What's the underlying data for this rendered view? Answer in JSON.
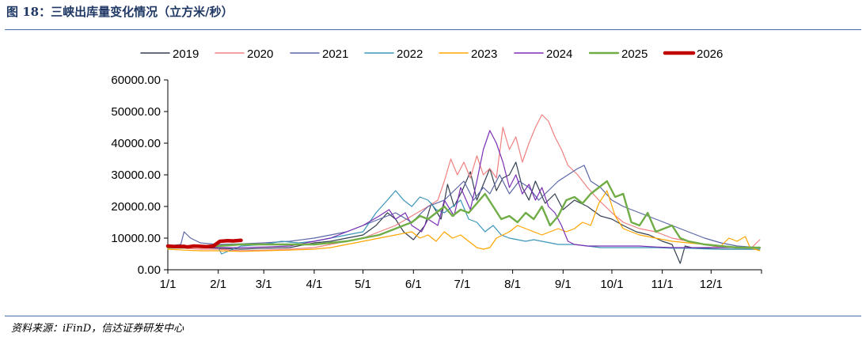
{
  "header": {
    "title": "图 18：三峡出库量变化情况（立方米/秒）"
  },
  "footer": {
    "source": "资料来源：iFinD，信达证券研发中心"
  },
  "chart_data": {
    "type": "line",
    "title": "三峡出库量变化情况（立方米/秒）",
    "xlabel": "",
    "ylabel": "",
    "ylim": [
      0,
      60000
    ],
    "yticks": [
      "0.00",
      "10000.00",
      "20000.00",
      "30000.00",
      "40000.00",
      "50000.00",
      "60000.00"
    ],
    "xlim": [
      0,
      365
    ],
    "xtick_labels": [
      "1/1",
      "2/1",
      "3/1",
      "4/1",
      "5/1",
      "6/1",
      "7/1",
      "8/1",
      "9/1",
      "10/1",
      "11/1",
      "12/1"
    ],
    "xtick_days": [
      0,
      31,
      59,
      90,
      120,
      151,
      181,
      212,
      243,
      273,
      304,
      334
    ],
    "legend_position": "top-center",
    "series": [
      {
        "name": "2019",
        "color": "#333f50",
        "width": 1.2,
        "days": [
          0,
          10,
          20,
          31,
          45,
          59,
          75,
          90,
          100,
          110,
          120,
          128,
          135,
          140,
          145,
          151,
          158,
          162,
          168,
          172,
          176,
          181,
          186,
          190,
          194,
          198,
          202,
          206,
          210,
          214,
          218,
          222,
          226,
          232,
          238,
          243,
          250,
          258,
          266,
          273,
          280,
          288,
          296,
          304,
          310,
          315,
          318,
          322,
          330,
          340,
          350,
          364
        ],
        "values": [
          7500,
          7200,
          7000,
          6800,
          6500,
          6800,
          7000,
          8500,
          9000,
          10000,
          11000,
          14000,
          18000,
          16000,
          12000,
          9500,
          14000,
          21000,
          16000,
          27000,
          20000,
          25000,
          31000,
          22000,
          27000,
          32000,
          25000,
          29000,
          30000,
          34000,
          26000,
          22000,
          28000,
          21000,
          24000,
          19000,
          22000,
          20000,
          17000,
          16000,
          14000,
          12000,
          11000,
          9000,
          8000,
          2000,
          7500,
          7000,
          6800,
          6500,
          6500,
          6500
        ]
      },
      {
        "name": "2020",
        "color": "#f08080",
        "width": 1.2,
        "days": [
          0,
          10,
          20,
          31,
          45,
          59,
          75,
          90,
          100,
          110,
          120,
          130,
          140,
          150,
          160,
          166,
          170,
          174,
          178,
          182,
          186,
          190,
          194,
          198,
          202,
          206,
          210,
          214,
          218,
          222,
          226,
          230,
          234,
          238,
          242,
          246,
          252,
          258,
          265,
          273,
          280,
          290,
          300,
          310,
          320,
          330,
          340,
          350,
          358,
          364
        ],
        "values": [
          7000,
          6800,
          6500,
          6500,
          6000,
          6200,
          6500,
          7000,
          8000,
          9000,
          10000,
          12000,
          14000,
          17000,
          20000,
          22000,
          28000,
          35000,
          30000,
          34000,
          29000,
          36000,
          30000,
          32000,
          29000,
          45000,
          38000,
          42000,
          34000,
          40000,
          45000,
          49000,
          47000,
          42000,
          38000,
          33000,
          30000,
          26000,
          22000,
          18000,
          15000,
          13000,
          12000,
          10000,
          9000,
          8000,
          7000,
          7200,
          6500,
          9500
        ]
      },
      {
        "name": "2021",
        "color": "#5a66a6",
        "width": 1.2,
        "days": [
          0,
          8,
          10,
          14,
          20,
          31,
          45,
          59,
          75,
          90,
          100,
          110,
          120,
          130,
          140,
          150,
          160,
          170,
          176,
          182,
          188,
          194,
          198,
          204,
          210,
          216,
          222,
          228,
          234,
          240,
          246,
          252,
          256,
          260,
          266,
          273,
          280,
          290,
          300,
          310,
          320,
          330,
          340,
          350,
          364
        ],
        "values": [
          7500,
          8000,
          12000,
          10000,
          8500,
          8000,
          8200,
          8500,
          9000,
          10000,
          11000,
          12000,
          14000,
          16000,
          18000,
          15000,
          20000,
          22000,
          25000,
          28000,
          22000,
          26000,
          24000,
          30000,
          24000,
          28000,
          26000,
          22000,
          25000,
          28000,
          30000,
          32000,
          33000,
          28000,
          26000,
          22000,
          20000,
          18000,
          16000,
          14000,
          12000,
          10000,
          8500,
          7500,
          7000
        ]
      },
      {
        "name": "2022",
        "color": "#3b95b8",
        "width": 1.2,
        "days": [
          0,
          10,
          20,
          31,
          33,
          45,
          59,
          70,
          80,
          90,
          100,
          110,
          120,
          128,
          135,
          140,
          145,
          150,
          155,
          160,
          165,
          170,
          175,
          180,
          185,
          190,
          195,
          200,
          205,
          210,
          215,
          220,
          225,
          230,
          235,
          240,
          245,
          250,
          258,
          266,
          273,
          280,
          290,
          300,
          310,
          320,
          330,
          340,
          350,
          364
        ],
        "values": [
          7000,
          7000,
          7200,
          7000,
          5000,
          7500,
          8000,
          9000,
          8500,
          9000,
          10000,
          11000,
          12000,
          18000,
          22000,
          25000,
          22000,
          20000,
          23000,
          22000,
          19000,
          18000,
          20000,
          22000,
          16000,
          15000,
          12000,
          14000,
          11000,
          10000,
          9500,
          9000,
          9500,
          9000,
          8500,
          8000,
          8000,
          8000,
          7500,
          7000,
          7000,
          7000,
          7000,
          7000,
          6800,
          6800,
          6600,
          6500,
          6500,
          6500
        ]
      },
      {
        "name": "2023",
        "color": "#ffa500",
        "width": 1.2,
        "days": [
          0,
          10,
          20,
          31,
          45,
          59,
          75,
          90,
          100,
          110,
          120,
          130,
          140,
          150,
          155,
          160,
          165,
          170,
          175,
          180,
          185,
          190,
          194,
          198,
          202,
          206,
          210,
          215,
          220,
          225,
          230,
          235,
          240,
          245,
          250,
          255,
          260,
          265,
          270,
          275,
          280,
          290,
          300,
          310,
          320,
          330,
          340,
          345,
          350,
          355,
          358,
          364
        ],
        "values": [
          6500,
          6200,
          6000,
          6000,
          5800,
          6000,
          6200,
          6500,
          7000,
          8000,
          9000,
          10000,
          11000,
          12000,
          10000,
          11000,
          9000,
          12000,
          10000,
          11000,
          9000,
          7000,
          6500,
          7000,
          10000,
          11000,
          12000,
          14000,
          13000,
          12000,
          11000,
          12000,
          13000,
          12000,
          13000,
          15000,
          14000,
          21000,
          25000,
          17000,
          13000,
          11000,
          10000,
          9000,
          8500,
          8000,
          7500,
          10000,
          9000,
          10500,
          7000,
          6000
        ]
      },
      {
        "name": "2024",
        "color": "#7b2fb5",
        "width": 1.2,
        "days": [
          0,
          10,
          20,
          31,
          45,
          59,
          75,
          90,
          100,
          110,
          120,
          130,
          136,
          140,
          146,
          150,
          156,
          160,
          166,
          170,
          176,
          180,
          186,
          190,
          194,
          198,
          202,
          206,
          210,
          214,
          218,
          222,
          226,
          230,
          234,
          238,
          242,
          246,
          250,
          258,
          266,
          273,
          280,
          290,
          300,
          310,
          320,
          330,
          340,
          350,
          364
        ],
        "values": [
          7500,
          7500,
          7200,
          7000,
          7000,
          7200,
          7500,
          9000,
          10000,
          12000,
          14000,
          17000,
          19000,
          16000,
          18000,
          14000,
          12000,
          16000,
          14000,
          22000,
          17000,
          26000,
          19000,
          28000,
          38000,
          44000,
          40000,
          34000,
          26000,
          30000,
          24000,
          27000,
          22000,
          26000,
          20000,
          18000,
          14000,
          9000,
          8000,
          7500,
          7500,
          7500,
          7500,
          7500,
          7200,
          7000,
          7000,
          7000,
          7000,
          7000,
          7000
        ]
      },
      {
        "name": "2025",
        "color": "#70ad47",
        "width": 2.4,
        "days": [
          0,
          10,
          20,
          31,
          45,
          59,
          75,
          90,
          100,
          110,
          120,
          130,
          140,
          150,
          155,
          160,
          165,
          170,
          175,
          180,
          185,
          190,
          195,
          200,
          205,
          210,
          215,
          220,
          225,
          230,
          235,
          240,
          245,
          250,
          255,
          260,
          265,
          270,
          275,
          280,
          285,
          290,
          295,
          300,
          305,
          310,
          315,
          320,
          330,
          340,
          350,
          364
        ],
        "values": [
          7000,
          7000,
          7500,
          7500,
          8000,
          8000,
          8000,
          8000,
          8500,
          9000,
          10000,
          11000,
          13000,
          15000,
          17000,
          16000,
          18000,
          20000,
          17000,
          19000,
          18000,
          21000,
          24000,
          20000,
          16000,
          17000,
          15000,
          18000,
          16000,
          20000,
          14000,
          17000,
          22000,
          23000,
          21000,
          24000,
          26000,
          28000,
          23000,
          24000,
          15000,
          14000,
          18000,
          12000,
          13000,
          14000,
          10000,
          9000,
          8000,
          7500,
          7000,
          7000
        ]
      },
      {
        "name": "2026",
        "color": "#c00000",
        "width": 4.5,
        "days": [
          0,
          5,
          10,
          12,
          16,
          20,
          24,
          28,
          32,
          37,
          40,
          45
        ],
        "values": [
          7500,
          7300,
          7400,
          7200,
          7500,
          7400,
          7300,
          7500,
          9000,
          9200,
          9100,
          9300
        ]
      }
    ]
  }
}
